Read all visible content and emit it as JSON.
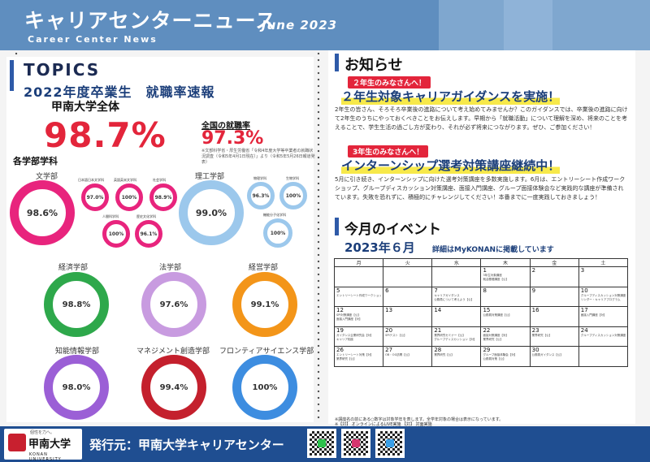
{
  "header": {
    "title": "キャリアセンターニュース",
    "subtitle": "Career Center News",
    "date": "June 2023"
  },
  "topics": {
    "heading": "TOPICS",
    "subheading": "2022年度卒業生　就職率速報",
    "overall_label": "甲南大学全体",
    "overall_rate": "98.7%",
    "national_label": "全国の就職率",
    "national_rate": "97.3%",
    "national_note": "※文部科学省・厚生労働省「令和4年度大学等卒業者の就職状況調査（令和5年4月1日現在）」より（令和5年5月26日報道発表）",
    "faculty_label": "各学部学科"
  },
  "faculties": {
    "bungaku": {
      "name": "文学部",
      "rate": "98.6%",
      "color": "#e8247d"
    },
    "rikou": {
      "name": "理工学部",
      "rate": "99.0%",
      "color": "#9cc8ec"
    },
    "keizai": {
      "name": "経済学部",
      "rate": "98.8%",
      "color": "#2ea84b"
    },
    "hougaku": {
      "name": "法学部",
      "rate": "97.6%",
      "color": "#c89be0"
    },
    "keiei": {
      "name": "経営学部",
      "rate": "99.1%",
      "color": "#f39519"
    },
    "chino": {
      "name": "知能情報学部",
      "rate": "98.0%",
      "color": "#9b5fd6"
    },
    "management": {
      "name": "マネジメント創造学部",
      "rate": "99.4%",
      "color": "#c4202d"
    },
    "frontier": {
      "name": "フロンティアサイエンス学部",
      "rate": "100%",
      "color": "#3d8de0"
    }
  },
  "departments_bungaku": [
    {
      "name": "日本語日本文学科",
      "rate": "97.0%"
    },
    {
      "name": "英語英米文学科",
      "rate": "100%"
    },
    {
      "name": "社会学科",
      "rate": "98.9%"
    },
    {
      "name": "人間科学科",
      "rate": "100%"
    },
    {
      "name": "歴史文化学科",
      "rate": "96.1%"
    }
  ],
  "departments_rikou": [
    {
      "name": "物理学科",
      "rate": "96.3%"
    },
    {
      "name": "生物学科",
      "rate": "100%"
    },
    {
      "name": "機能分子化学科",
      "rate": "100%"
    }
  ],
  "notice": {
    "heading": "お知らせ",
    "tag1": "２年生のみなさんへ！",
    "head1": "２年生対象キャリアガイダンスを実施！",
    "body1": "2年生の皆さん、そろそろ卒業後の進路について考え始めてみませんか？このガイダンスでは、卒業後の進路に向けて2年生のうちにやっておくべきことをお伝えします。早期から「就職活動」について理解を深め、将来のことを考えることで、学生生活の過ごし方が変わり、それが必ず将来につながります。ぜひ、ご参加ください！",
    "tag2": "3年生のみなさんへ！",
    "head2": "インターンシップ選考対策講座継続中！",
    "body2": "5月に引き続き、インターンシップに向けた選考対策講座を多数実施します。6月は、エントリーシート作成ワークショップ、グループディスカッション対策講座、面接入門講座、グループ面接体験会など実践的な講座が準備されています。失敗を恐れずに、積極的にチャレンジしてください！本番までに一度実践しておきましょう！"
  },
  "events": {
    "heading": "今月のイベント",
    "month": "2023年６月",
    "note": "詳細はMyKONANに掲載しています",
    "weekdays": [
      "月",
      "火",
      "水",
      "木",
      "金",
      "土"
    ],
    "weeks": [
      [
        {
          "d": "",
          "e": []
        },
        {
          "d": "",
          "e": []
        },
        {
          "d": "",
          "e": []
        },
        {
          "d": "1",
          "e": [
            "3年生対象講座",
            "就活基礎講座【公】"
          ]
        },
        {
          "d": "2",
          "e": []
        },
        {
          "d": "3",
          "e": []
        }
      ],
      [
        {
          "d": "5",
          "e": [
            "エントリーシート作成ワークショップ【公】"
          ]
        },
        {
          "d": "6",
          "e": []
        },
        {
          "d": "7",
          "e": [
            "キャリアガイダンス",
            "公務員について考えよう【公】"
          ]
        },
        {
          "d": "8",
          "e": []
        },
        {
          "d": "9",
          "e": []
        },
        {
          "d": "10",
          "e": [
            "グループディスカッション対策講座【公】",
            "リンダー・キャリアプログラム"
          ]
        }
      ],
      [
        {
          "d": "12",
          "e": [
            "SPI対策講座【公】",
            "面接入門講座【対】"
          ]
        },
        {
          "d": "13",
          "e": []
        },
        {
          "d": "14",
          "e": []
        },
        {
          "d": "15",
          "e": [
            "公務員対策講座【公】"
          ]
        },
        {
          "d": "16",
          "e": []
        },
        {
          "d": "17",
          "e": [
            "面接入門講座【対】"
          ]
        }
      ],
      [
        {
          "d": "19",
          "e": [
            "ガイダンス企業研究会【対】",
            "キャリア相談"
          ]
        },
        {
          "d": "20",
          "e": [
            "SPIテスト【公】"
          ]
        },
        {
          "d": "21",
          "e": [
            "業界研究セミナー【公】",
            "グループディスカッション【対】"
          ]
        },
        {
          "d": "22",
          "e": [
            "面接対策講座【対】",
            "業界研究【公】"
          ]
        },
        {
          "d": "23",
          "e": [
            "業界研究【公】"
          ]
        },
        {
          "d": "24",
          "e": [
            "グループディスカッション対策講座【対】"
          ]
        }
      ],
      [
        {
          "d": "26",
          "e": [
            "エントリーシート対策【対】",
            "業界研究【公】"
          ]
        },
        {
          "d": "27",
          "e": [
            "OB・OG訪問【公】"
          ]
        },
        {
          "d": "28",
          "e": [
            "業界研究【公】"
          ]
        },
        {
          "d": "29",
          "e": [
            "グループ面接体験会【対】",
            "公務員対策【公】"
          ]
        },
        {
          "d": "30",
          "e": [
            "公務員ガイダンス【公】"
          ]
        },
        {
          "d": "",
          "e": []
        }
      ]
    ],
    "footnote1": "※講座名の前にある○数字は対象学年を表します。全学年対象の場合は表示になっています。",
    "footnote2": "※【対】 オンラインによるLIVE実施 【対】 対面実施"
  },
  "footer": {
    "logo_tagline": "個性を力へ。",
    "logo_name": "甲南大学",
    "logo_en": "KONAN UNIVERSITY",
    "publisher": "発行元：甲南大学キャリアセンター"
  }
}
